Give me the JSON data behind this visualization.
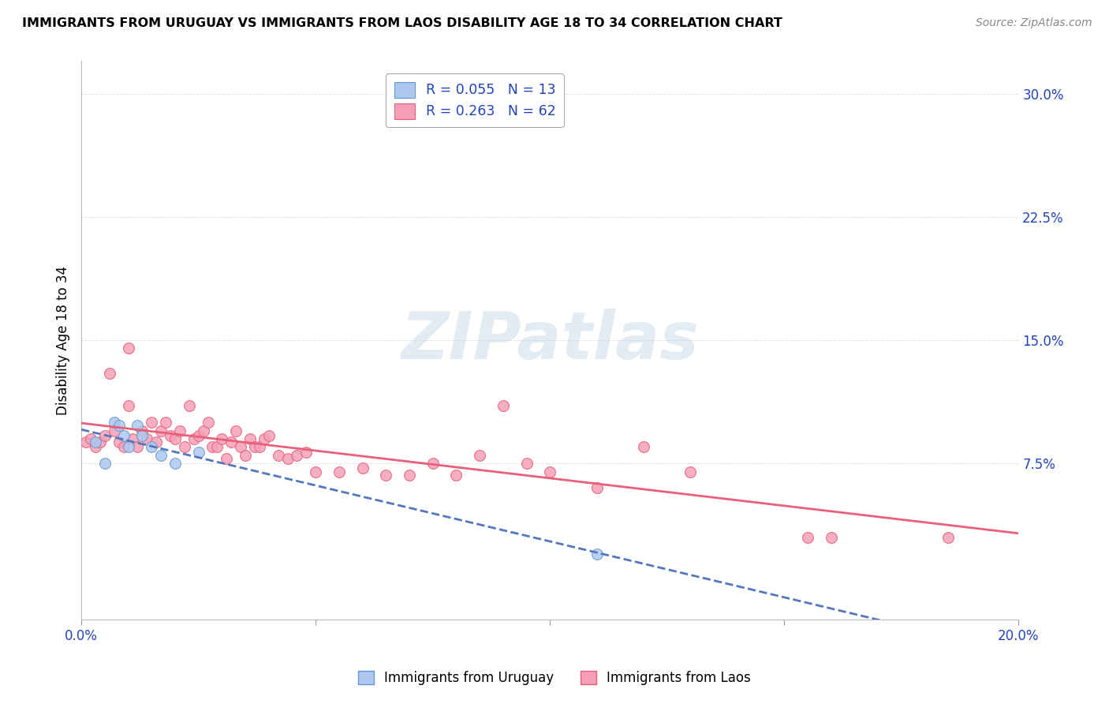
{
  "title": "IMMIGRANTS FROM URUGUAY VS IMMIGRANTS FROM LAOS DISABILITY AGE 18 TO 34 CORRELATION CHART",
  "source": "Source: ZipAtlas.com",
  "ylabel": "Disability Age 18 to 34",
  "xlim": [
    0.0,
    0.2
  ],
  "ylim": [
    -0.02,
    0.32
  ],
  "x_ticks": [
    0.0,
    0.05,
    0.1,
    0.15,
    0.2
  ],
  "x_tick_labels": [
    "0.0%",
    "",
    "",
    "",
    "20.0%"
  ],
  "y_ticks": [
    0.075,
    0.15,
    0.225,
    0.3
  ],
  "y_tick_labels": [
    "7.5%",
    "15.0%",
    "22.5%",
    "30.0%"
  ],
  "series1_label": "Immigrants from Uruguay",
  "series2_label": "Immigrants from Laos",
  "series1_R": "0.055",
  "series1_N": "13",
  "series2_R": "0.263",
  "series2_N": "62",
  "series1_color": "#adc8f0",
  "series2_color": "#f5a0b8",
  "series1_edge_color": "#6699cc",
  "series2_edge_color": "#e8607a",
  "series1_line_color": "#5577bb",
  "series2_line_color": "#e8607a",
  "legend_text_color": "#2244bb",
  "tick_color": "#2244bb",
  "watermark_text": "ZIPatlas",
  "background_color": "#ffffff",
  "grid_color": "#dddddd",
  "scatter1_x": [
    0.003,
    0.005,
    0.007,
    0.008,
    0.009,
    0.01,
    0.012,
    0.013,
    0.015,
    0.017,
    0.02,
    0.025,
    0.11
  ],
  "scatter1_y": [
    0.088,
    0.075,
    0.1,
    0.098,
    0.092,
    0.085,
    0.098,
    0.092,
    0.085,
    0.08,
    0.075,
    0.082,
    0.02
  ],
  "scatter2_x": [
    0.001,
    0.002,
    0.003,
    0.004,
    0.005,
    0.006,
    0.007,
    0.008,
    0.009,
    0.01,
    0.01,
    0.011,
    0.012,
    0.013,
    0.014,
    0.015,
    0.016,
    0.017,
    0.018,
    0.019,
    0.02,
    0.021,
    0.022,
    0.023,
    0.024,
    0.025,
    0.026,
    0.027,
    0.028,
    0.029,
    0.03,
    0.031,
    0.032,
    0.033,
    0.034,
    0.035,
    0.036,
    0.037,
    0.038,
    0.039,
    0.04,
    0.042,
    0.044,
    0.046,
    0.048,
    0.05,
    0.055,
    0.06,
    0.065,
    0.07,
    0.075,
    0.08,
    0.085,
    0.09,
    0.095,
    0.1,
    0.11,
    0.12,
    0.13,
    0.155,
    0.16,
    0.185
  ],
  "scatter2_y": [
    0.088,
    0.09,
    0.085,
    0.088,
    0.092,
    0.13,
    0.095,
    0.088,
    0.085,
    0.145,
    0.11,
    0.09,
    0.085,
    0.095,
    0.09,
    0.1,
    0.088,
    0.095,
    0.1,
    0.092,
    0.09,
    0.095,
    0.085,
    0.11,
    0.09,
    0.092,
    0.095,
    0.1,
    0.085,
    0.085,
    0.09,
    0.078,
    0.088,
    0.095,
    0.085,
    0.08,
    0.09,
    0.085,
    0.085,
    0.09,
    0.092,
    0.08,
    0.078,
    0.08,
    0.082,
    0.07,
    0.07,
    0.072,
    0.068,
    0.068,
    0.075,
    0.068,
    0.08,
    0.11,
    0.075,
    0.07,
    0.06,
    0.085,
    0.07,
    0.03,
    0.03,
    0.03
  ]
}
